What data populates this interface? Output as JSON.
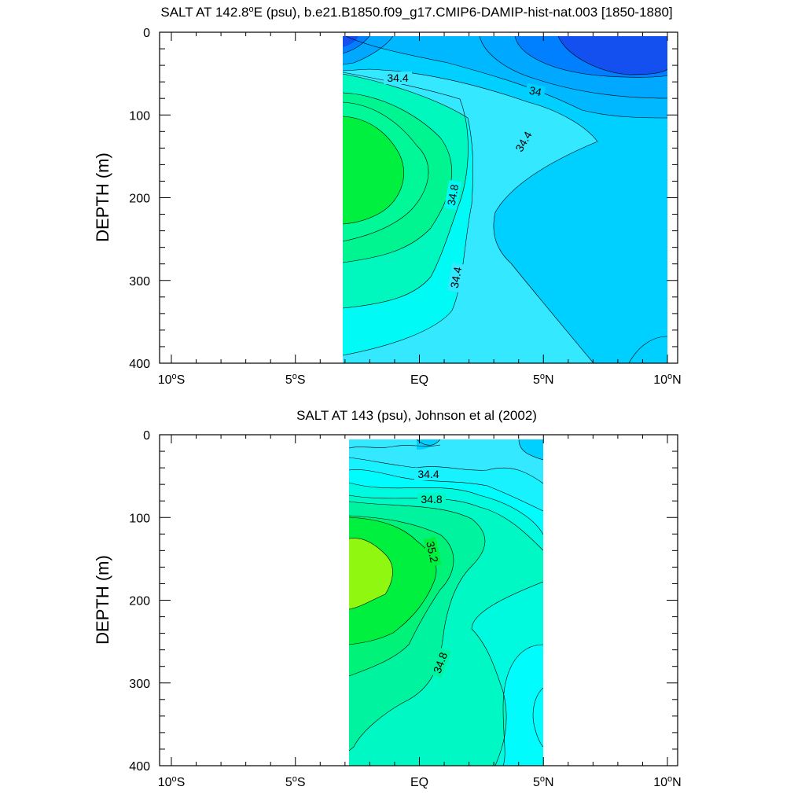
{
  "chart_data": [
    {
      "type": "contour",
      "title": "SALT AT 142.8°E (psu), b.e21.B1850.f09_g17.CMIP6-DAMIP-hist-nat.003 [1850-1880]",
      "title_parts": {
        "pre": "SALT AT 142.8",
        "sup": "o",
        "post": "E (psu), b.e21.B1850.f09_g17.CMIP6-DAMIP-hist-nat.003 [1850-1880]"
      },
      "ylabel": "DEPTH (m)",
      "xlim": [
        -10,
        10
      ],
      "ylim": [
        400,
        0
      ],
      "x_ticks": [
        {
          "value": -10,
          "label": "10",
          "sup": "o",
          "suffix": "S"
        },
        {
          "value": -5,
          "label": "5",
          "sup": "o",
          "suffix": "S"
        },
        {
          "value": 0,
          "label": "EQ",
          "sup": "",
          "suffix": ""
        },
        {
          "value": 5,
          "label": "5",
          "sup": "o",
          "suffix": "N"
        },
        {
          "value": 10,
          "label": "10",
          "sup": "o",
          "suffix": "N"
        }
      ],
      "y_ticks": [
        "0",
        "100",
        "200",
        "300",
        "400"
      ],
      "data_extent": {
        "x": [
          -3,
          10
        ],
        "depth": [
          5,
          400
        ]
      },
      "contour_interval": 0.2,
      "levels": [
        {
          "value": 33.6,
          "color": "#1450f0"
        },
        {
          "value": 33.8,
          "color": "#0080ff"
        },
        {
          "value": 34.0,
          "color": "#00a8ff"
        },
        {
          "value": 34.2,
          "color": "#00d0ff"
        },
        {
          "value": 34.4,
          "color": "#34e8ff"
        },
        {
          "value": 34.6,
          "color": "#00faf5"
        },
        {
          "value": 34.8,
          "color": "#00f8be"
        },
        {
          "value": 35.0,
          "color": "#00f490"
        },
        {
          "value": 35.2,
          "color": "#00f040"
        }
      ],
      "contour_labels": [
        "34.4",
        "34",
        "34.4",
        "34.8",
        "34.4"
      ]
    },
    {
      "type": "contour",
      "title": "SALT AT 143 (psu), Johnson et al (2002)",
      "ylabel": "DEPTH (m)",
      "xlim": [
        -10,
        10
      ],
      "ylim": [
        400,
        0
      ],
      "x_ticks": [
        {
          "value": -10,
          "label": "10",
          "sup": "o",
          "suffix": "S"
        },
        {
          "value": -5,
          "label": "5",
          "sup": "o",
          "suffix": "S"
        },
        {
          "value": 0,
          "label": "EQ",
          "sup": "",
          "suffix": ""
        },
        {
          "value": 5,
          "label": "5",
          "sup": "o",
          "suffix": "N"
        },
        {
          "value": 10,
          "label": "10",
          "sup": "o",
          "suffix": "N"
        }
      ],
      "y_ticks": [
        "0",
        "100",
        "200",
        "300",
        "400"
      ],
      "data_extent": {
        "x": [
          -2.8,
          5
        ],
        "depth": [
          5,
          400
        ]
      },
      "contour_interval": 0.1,
      "levels": [
        {
          "value": 34.2,
          "color": "#00d0ff"
        },
        {
          "value": 34.3,
          "color": "#34e8ff"
        },
        {
          "value": 34.4,
          "color": "#18f2ff"
        },
        {
          "value": 34.5,
          "color": "#00fcfc"
        },
        {
          "value": 34.6,
          "color": "#00fae0"
        },
        {
          "value": 34.7,
          "color": "#00f8c4"
        },
        {
          "value": 34.8,
          "color": "#00f4a0"
        },
        {
          "value": 34.9,
          "color": "#00f278"
        },
        {
          "value": 35.1,
          "color": "#00f040"
        },
        {
          "value": 35.3,
          "color": "#90f810"
        }
      ],
      "contour_labels": [
        "34.4",
        "34.8",
        "35.2",
        "34.8"
      ]
    }
  ]
}
